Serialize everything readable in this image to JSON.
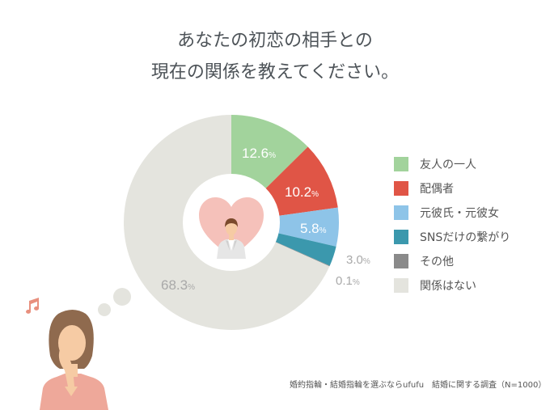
{
  "title": {
    "line1": "あなたの初恋の相手との",
    "line2": "現在の関係を教えてください。"
  },
  "chart_data": {
    "type": "pie",
    "variant": "donut",
    "title": "あなたの初恋の相手との現在の関係を教えてください。",
    "categories": [
      "友人の一人",
      "配偶者",
      "元彼氏・元彼女",
      "SNSだけの繋がり",
      "その他",
      "関係はない"
    ],
    "values": [
      12.6,
      10.2,
      5.8,
      3.0,
      0.1,
      68.3
    ],
    "colors": [
      "#a2d39c",
      "#e05546",
      "#8ec4e8",
      "#3b98ad",
      "#8a8a8a",
      "#e4e4de"
    ],
    "unit": "%",
    "legend_position": "right",
    "start_angle": "12 o'clock, clockwise",
    "note": "婚約指輪・結婚指輪を選ぶならufufu　結婚に関する調査（N=1000）"
  },
  "labels": {
    "s0": "12.6",
    "s1": "10.2",
    "s2": "5.8",
    "s3": "3.0",
    "s4": "0.1",
    "s5": "68.3",
    "unit": "%"
  },
  "legend": [
    {
      "label": "友人の一人",
      "color": "#a2d39c"
    },
    {
      "label": "配偶者",
      "color": "#e05546"
    },
    {
      "label": "元彼氏・元彼女",
      "color": "#8ec4e8"
    },
    {
      "label": "SNSだけの繋がり",
      "color": "#3b98ad"
    },
    {
      "label": "その他",
      "color": "#8a8a8a"
    },
    {
      "label": "関係はない",
      "color": "#e4e4de"
    }
  ],
  "source": "婚約指輪・結婚指輪を選ぶならufufu　結婚に関する調査（N=1000）"
}
